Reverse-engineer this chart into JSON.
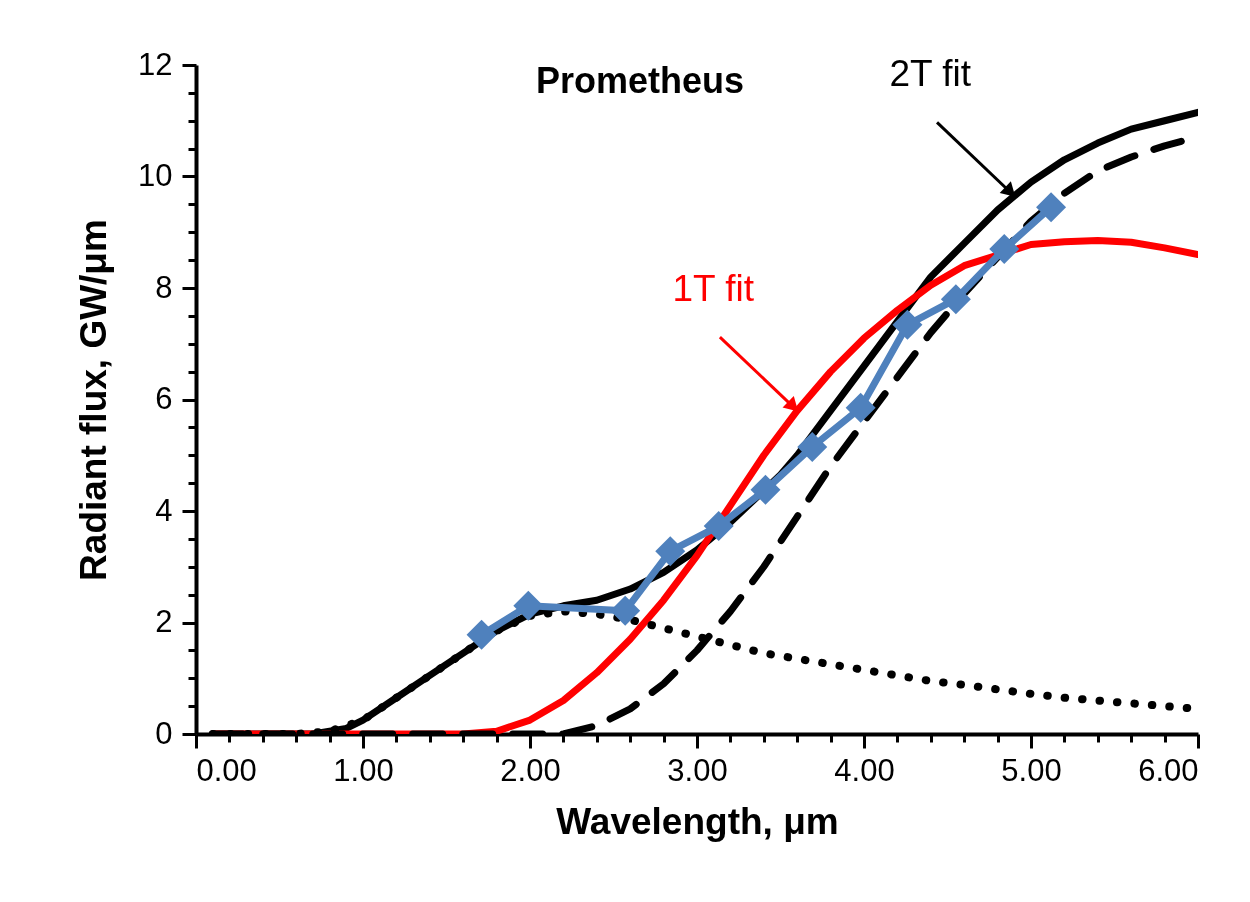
{
  "chart_data": {
    "type": "line",
    "title": "Prometheus",
    "xlabel": "Wavelength, μm",
    "ylabel": "Radiant flux, GW/μm",
    "xlim": [
      0,
      6
    ],
    "ylim": [
      0,
      12
    ],
    "xticks": [
      {
        "value": 0,
        "label": "0.00"
      },
      {
        "value": 0.2,
        "label": null
      },
      {
        "value": 0.4,
        "label": null
      },
      {
        "value": 0.6,
        "label": null
      },
      {
        "value": 0.8,
        "label": null
      },
      {
        "value": 1,
        "label": "1.00"
      },
      {
        "value": 1.2,
        "label": null
      },
      {
        "value": 1.4,
        "label": null
      },
      {
        "value": 1.6,
        "label": null
      },
      {
        "value": 1.8,
        "label": null
      },
      {
        "value": 2,
        "label": "2.00"
      },
      {
        "value": 2.2,
        "label": null
      },
      {
        "value": 2.4,
        "label": null
      },
      {
        "value": 2.6,
        "label": null
      },
      {
        "value": 2.8,
        "label": null
      },
      {
        "value": 3,
        "label": "3.00"
      },
      {
        "value": 3.2,
        "label": null
      },
      {
        "value": 3.4,
        "label": null
      },
      {
        "value": 3.6,
        "label": null
      },
      {
        "value": 3.8,
        "label": null
      },
      {
        "value": 4,
        "label": "4.00"
      },
      {
        "value": 4.2,
        "label": null
      },
      {
        "value": 4.4,
        "label": null
      },
      {
        "value": 4.6,
        "label": null
      },
      {
        "value": 4.8,
        "label": null
      },
      {
        "value": 5,
        "label": "5.00"
      },
      {
        "value": 5.2,
        "label": null
      },
      {
        "value": 5.4,
        "label": null
      },
      {
        "value": 5.6,
        "label": null
      },
      {
        "value": 5.8,
        "label": null
      },
      {
        "value": 6,
        "label": "6.00"
      }
    ],
    "yticks": [
      0,
      {
        "value": 0.5,
        "label": null
      },
      {
        "value": 1,
        "label": null
      },
      {
        "value": 1.5,
        "label": null
      },
      2,
      {
        "value": 2.5,
        "label": null
      },
      {
        "value": 3,
        "label": null
      },
      {
        "value": 3.5,
        "label": null
      },
      4,
      {
        "value": 4.5,
        "label": null
      },
      {
        "value": 5,
        "label": null
      },
      {
        "value": 5.5,
        "label": null
      },
      6,
      {
        "value": 6.5,
        "label": null
      },
      {
        "value": 7,
        "label": null
      },
      {
        "value": 7.5,
        "label": null
      },
      8,
      {
        "value": 8.5,
        "label": null
      },
      {
        "value": 9,
        "label": null
      },
      {
        "value": 9.5,
        "label": null
      },
      10,
      {
        "value": 10.5,
        "label": null
      },
      {
        "value": 11,
        "label": null
      },
      {
        "value": 11.5,
        "label": null
      },
      12
    ],
    "grid": false,
    "annotations": [
      {
        "text": "1T fit",
        "x": 3.6,
        "y": 5.8
      },
      {
        "text": "2T fit",
        "x": 4.9,
        "y": 9.65
      }
    ],
    "series": [
      {
        "color": "#000000",
        "line_style": "solid",
        "marker": "none",
        "x": [
          0.1,
          0.4,
          0.7,
          0.9,
          1.0,
          1.2,
          1.4,
          1.6,
          1.8,
          2.0,
          2.2,
          2.4,
          2.6,
          2.8,
          3.0,
          3.2,
          3.5,
          3.6,
          3.8,
          4.0,
          4.2,
          4.4,
          4.6,
          4.8,
          5.0,
          5.2,
          5.4,
          5.6,
          5.8,
          6.0
        ],
        "values": [
          0,
          0,
          0,
          0.1,
          0.25,
          0.65,
          1.05,
          1.45,
          1.85,
          2.15,
          2.3,
          2.4,
          2.6,
          2.9,
          3.3,
          3.8,
          4.65,
          5.0,
          5.8,
          6.6,
          7.4,
          8.2,
          8.8,
          9.4,
          9.9,
          10.3,
          10.6,
          10.85,
          11.0,
          11.15
        ]
      },
      {
        "color": "#ff0000",
        "line_style": "solid",
        "marker": "none",
        "x": [
          0.1,
          0.6,
          1.0,
          1.4,
          1.6,
          1.8,
          2.0,
          2.2,
          2.4,
          2.6,
          2.8,
          3.0,
          3.2,
          3.4,
          3.6,
          3.8,
          4.0,
          4.2,
          4.4,
          4.6,
          5.0,
          5.2,
          5.4,
          5.6,
          5.8,
          6.0
        ],
        "values": [
          0,
          0,
          0,
          0,
          0,
          0.05,
          0.25,
          0.6,
          1.1,
          1.7,
          2.4,
          3.2,
          4.1,
          5.0,
          5.8,
          6.5,
          7.1,
          7.6,
          8.05,
          8.4,
          8.78,
          8.83,
          8.85,
          8.82,
          8.72,
          8.6
        ]
      },
      {
        "color": "#000000",
        "line_style": "dashed",
        "marker": "none",
        "x": [
          0.1,
          1.0,
          2.0,
          2.2,
          2.4,
          2.6,
          2.8,
          3.0,
          3.2,
          3.4,
          3.6,
          3.8,
          4.0,
          4.2,
          4.4,
          4.6,
          5.0,
          5.2,
          5.4,
          5.6,
          5.8,
          5.9
        ],
        "values": [
          0,
          0,
          0,
          0,
          0.15,
          0.45,
          0.9,
          1.5,
          2.2,
          3.0,
          3.9,
          4.8,
          5.6,
          6.4,
          7.2,
          7.9,
          9.2,
          9.7,
          10.1,
          10.35,
          10.55,
          10.63
        ]
      },
      {
        "color": "#000000",
        "line_style": "dotted",
        "marker": "none",
        "x": [
          0.1,
          0.4,
          0.6,
          0.8,
          1.0,
          1.2,
          1.4,
          1.6,
          1.8,
          2.0,
          2.2,
          2.4,
          2.6,
          2.8,
          3.0,
          3.2,
          3.4,
          3.6,
          3.8,
          4.0,
          4.2,
          4.4,
          4.6,
          4.8,
          5.0,
          5.2,
          5.4,
          5.6,
          5.8,
          6.0
        ],
        "values": [
          0,
          0,
          0,
          0.05,
          0.25,
          0.65,
          1.05,
          1.45,
          1.85,
          2.12,
          2.2,
          2.15,
          2.05,
          1.9,
          1.75,
          1.6,
          1.45,
          1.35,
          1.25,
          1.15,
          1.05,
          0.95,
          0.88,
          0.8,
          0.72,
          0.65,
          0.6,
          0.55,
          0.5,
          0.45
        ]
      },
      {
        "color": "#4f81bd",
        "line_style": "solid",
        "marker": "diamond",
        "x": [
          1.71,
          1.99,
          2.57,
          2.84,
          3.13,
          3.41,
          3.69,
          3.98,
          4.26,
          4.55,
          4.84,
          5.12
        ],
        "values": [
          1.78,
          2.3,
          2.21,
          3.28,
          3.73,
          4.38,
          5.15,
          5.85,
          7.34,
          7.8,
          8.7,
          9.45
        ]
      }
    ]
  }
}
